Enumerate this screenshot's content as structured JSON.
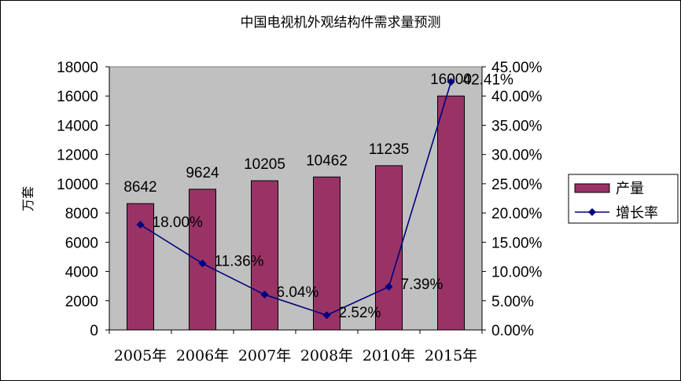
{
  "chart_data": {
    "type": "bar",
    "title": "中国电视机外观结构件需求量预测",
    "ylabel": "万套",
    "categories": [
      "2005年",
      "2006年",
      "2007年",
      "2008年",
      "2010年",
      "2015年"
    ],
    "series": [
      {
        "name": "产量",
        "type": "bar",
        "axis": "left",
        "values": [
          8642,
          9624,
          10205,
          10462,
          11235,
          16000
        ],
        "labels": [
          "8642",
          "9624",
          "10205",
          "10462",
          "11235",
          "16000"
        ],
        "color": "#993366"
      },
      {
        "name": "增长率",
        "type": "line",
        "axis": "right",
        "values": [
          18.0,
          11.36,
          6.04,
          2.52,
          7.39,
          42.41
        ],
        "labels": [
          "18.00%",
          "11.36%",
          "6.04%",
          "2.52%",
          "7.39%",
          "42.41%"
        ],
        "color": "#000080"
      }
    ],
    "y_left": {
      "ylim": [
        0,
        18000
      ],
      "ticks": [
        "0",
        "2000",
        "4000",
        "6000",
        "8000",
        "10000",
        "12000",
        "14000",
        "16000",
        "18000"
      ]
    },
    "y_right": {
      "ylim": [
        0,
        45
      ],
      "ticks": [
        "0.00%",
        "5.00%",
        "10.00%",
        "15.00%",
        "20.00%",
        "25.00%",
        "30.00%",
        "35.00%",
        "40.00%",
        "45.00%"
      ]
    },
    "grid": false,
    "plot_background": "#c0c0c0",
    "legend_position": "right"
  }
}
